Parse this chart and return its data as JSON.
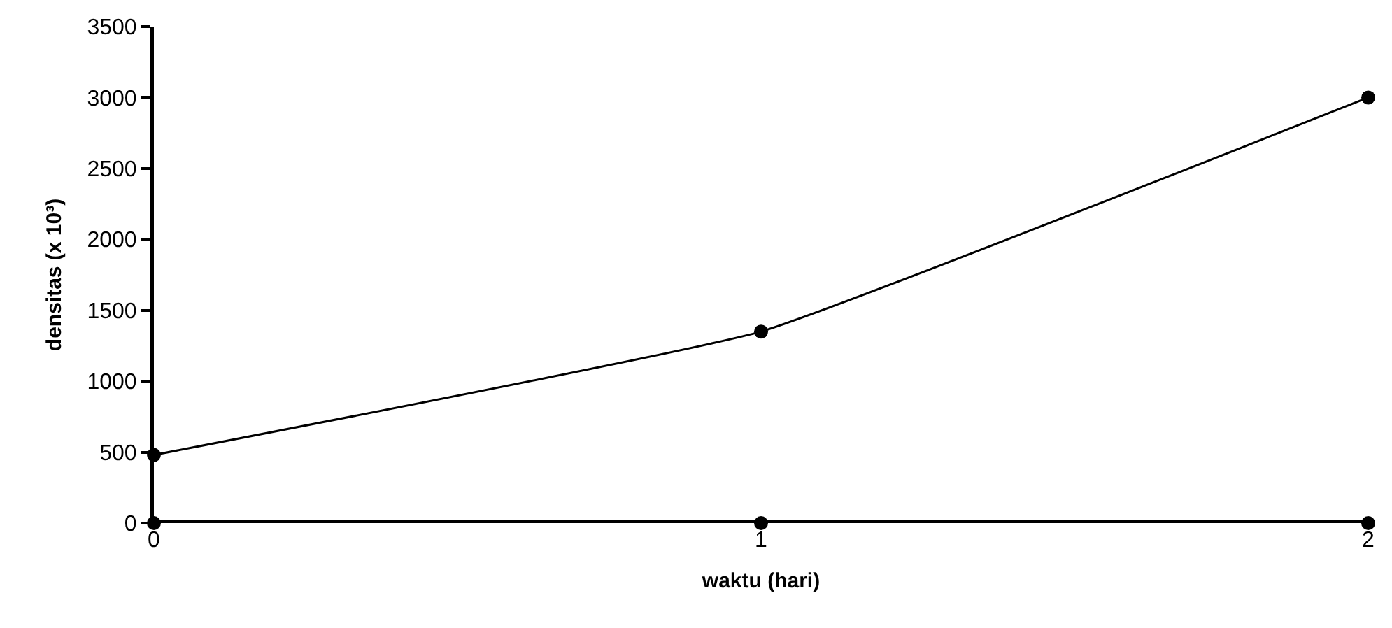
{
  "chart_data": {
    "type": "line",
    "xlabel": "waktu (hari)",
    "ylabel": "densitas (x 10³)",
    "x": [
      0,
      1,
      2
    ],
    "xlim": [
      0,
      2
    ],
    "xticks": [
      0,
      1,
      2
    ],
    "ylim": [
      0,
      3500
    ],
    "yticks": [
      0,
      500,
      1000,
      1500,
      2000,
      2500,
      3000,
      3500
    ],
    "series": [
      {
        "color": "#000000",
        "values": [
          480,
          1350,
          3000
        ]
      },
      {
        "color": "#000000",
        "values": [
          0,
          0,
          0
        ]
      }
    ],
    "marker": "circle"
  }
}
